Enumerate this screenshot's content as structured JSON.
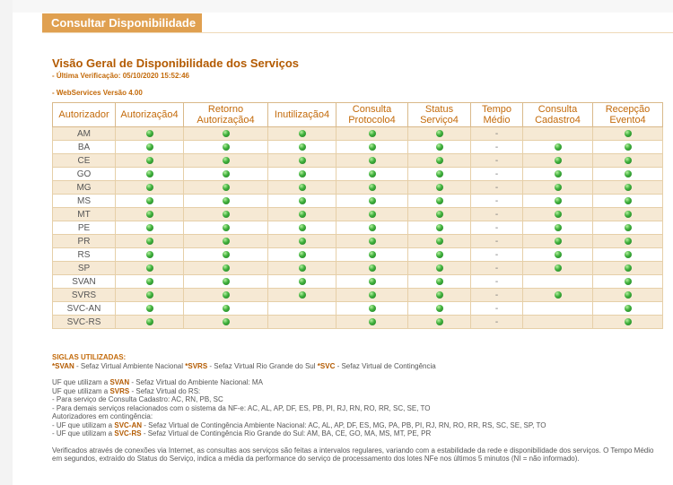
{
  "header": {
    "title": "Consultar Disponibilidade"
  },
  "overview": {
    "title": "Visão Geral de Disponibilidade dos Serviços",
    "last_check": "- Última Verificação: 05/10/2020 15:52:46",
    "version": "- WebServices Versão 4.00"
  },
  "table": {
    "headers": [
      "Autorizador",
      "Autorização4",
      "Retorno Autorização4",
      "Inutilização4",
      "Consulta Protocolo4",
      "Status Serviço4",
      "Tempo Médio",
      "Consulta Cadastro4",
      "Recepção Evento4"
    ],
    "rows": [
      {
        "name": "AM",
        "cells": [
          "ok",
          "ok",
          "ok",
          "ok",
          "ok",
          "-",
          "",
          "ok"
        ]
      },
      {
        "name": "BA",
        "cells": [
          "ok",
          "ok",
          "ok",
          "ok",
          "ok",
          "-",
          "ok",
          "ok"
        ]
      },
      {
        "name": "CE",
        "cells": [
          "ok",
          "ok",
          "ok",
          "ok",
          "ok",
          "-",
          "ok",
          "ok"
        ]
      },
      {
        "name": "GO",
        "cells": [
          "ok",
          "ok",
          "ok",
          "ok",
          "ok",
          "-",
          "ok",
          "ok"
        ]
      },
      {
        "name": "MG",
        "cells": [
          "ok",
          "ok",
          "ok",
          "ok",
          "ok",
          "-",
          "ok",
          "ok"
        ]
      },
      {
        "name": "MS",
        "cells": [
          "ok",
          "ok",
          "ok",
          "ok",
          "ok",
          "-",
          "ok",
          "ok"
        ]
      },
      {
        "name": "MT",
        "cells": [
          "ok",
          "ok",
          "ok",
          "ok",
          "ok",
          "-",
          "ok",
          "ok"
        ]
      },
      {
        "name": "PE",
        "cells": [
          "ok",
          "ok",
          "ok",
          "ok",
          "ok",
          "-",
          "ok",
          "ok"
        ]
      },
      {
        "name": "PR",
        "cells": [
          "ok",
          "ok",
          "ok",
          "ok",
          "ok",
          "-",
          "ok",
          "ok"
        ]
      },
      {
        "name": "RS",
        "cells": [
          "ok",
          "ok",
          "ok",
          "ok",
          "ok",
          "-",
          "ok",
          "ok"
        ]
      },
      {
        "name": "SP",
        "cells": [
          "ok",
          "ok",
          "ok",
          "ok",
          "ok",
          "-",
          "ok",
          "ok"
        ]
      },
      {
        "name": "SVAN",
        "cells": [
          "ok",
          "ok",
          "ok",
          "ok",
          "ok",
          "-",
          "",
          "ok"
        ]
      },
      {
        "name": "SVRS",
        "cells": [
          "ok",
          "ok",
          "ok",
          "ok",
          "ok",
          "-",
          "ok",
          "ok"
        ]
      },
      {
        "name": "SVC-AN",
        "cells": [
          "ok",
          "ok",
          "",
          "ok",
          "ok",
          "-",
          "",
          "ok"
        ]
      },
      {
        "name": "SVC-RS",
        "cells": [
          "ok",
          "ok",
          "",
          "ok",
          "ok",
          "-",
          "",
          "ok"
        ]
      }
    ]
  },
  "notes": {
    "siglas_title": "SIGLAS UTILIZADAS:",
    "siglas": [
      {
        "star": "*",
        "key": "SVAN",
        "text": " - Sefaz Virtual Ambiente Nacional "
      },
      {
        "star": "*",
        "key": "SVRS",
        "text": " - Sefaz Virtual Rio Grande do Sul "
      },
      {
        "star": "*",
        "key": "SVC",
        "text": " - Sefaz Virtual de Contingência"
      }
    ],
    "svan_line": {
      "pre": "UF que utilizam a ",
      "key": "SVAN",
      "post": " - Sefaz Virtual do Ambiente Nacional: MA"
    },
    "svrs_line": {
      "pre": "UF que utilizam a ",
      "key": "SVRS",
      "post": " - Sefaz Virtual do RS:"
    },
    "svrs_sub1": "- Para serviço de Consulta Cadastro: AC, RN, PB, SC",
    "svrs_sub2": "- Para demais serviços relacionados com o sistema da NF-e: AC, AL, AP, DF, ES, PB, PI, RJ, RN, RO, RR, SC, SE, TO",
    "contingencia": "Autorizadores em contingência:",
    "svcan_line": {
      "pre": "- UF que utilizam a ",
      "key": "SVC-AN",
      "post": " - Sefaz Virtual de Contingência Ambiente Nacional: AC, AL, AP, DF, ES, MG, PA, PB, PI, RJ, RN, RO, RR, RS, SC, SE, SP, TO"
    },
    "svcrs_line": {
      "pre": "- UF que utilizam a ",
      "key": "SVC-RS",
      "post": " - Sefaz Virtual de Contingência Rio Grande do Sul: AM, BA, CE, GO, MA, MS, MT, PE, PR"
    },
    "footer": "Verificados através de conexões via Internet, as consultas aos serviços são feitas a intervalos regulares, variando com a estabilidade da rede e disponibilidade dos serviços. O Tempo Médio em segundos, extraído do Status do Serviço, indica a média da performance do serviço de processamento dos lotes NFe nos últimos 5 minutos (NI = não informado)."
  }
}
